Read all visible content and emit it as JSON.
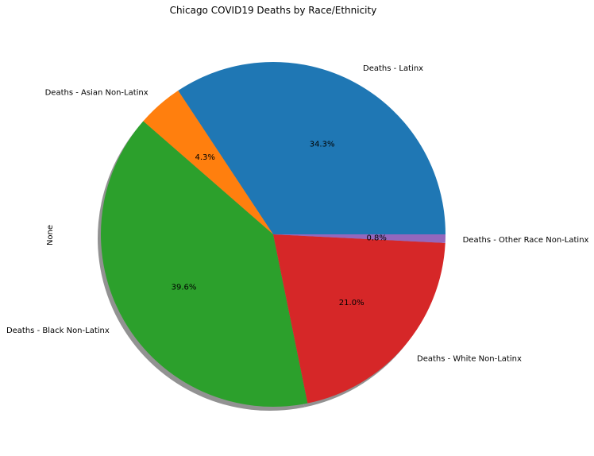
{
  "chart_data": {
    "type": "pie",
    "title": "Chicago COVID19 Deaths by Race/Ethnicity",
    "ylabel": "None",
    "shadow": true,
    "labels": [
      "Deaths - Latinx",
      "Deaths - Asian Non-Latinx",
      "Deaths - Black Non-Latinx",
      "Deaths - White Non-Latinx",
      "Deaths - Other Race Non-Latinx"
    ],
    "values": [
      34.3,
      4.3,
      39.6,
      21.0,
      0.8
    ],
    "value_labels": [
      "34.3%",
      "4.3%",
      "39.6%",
      "21.0%",
      "0.8%"
    ],
    "colors": [
      "#1f77b4",
      "#ff7f0e",
      "#2ca02c",
      "#d62728",
      "#9467bd"
    ]
  }
}
